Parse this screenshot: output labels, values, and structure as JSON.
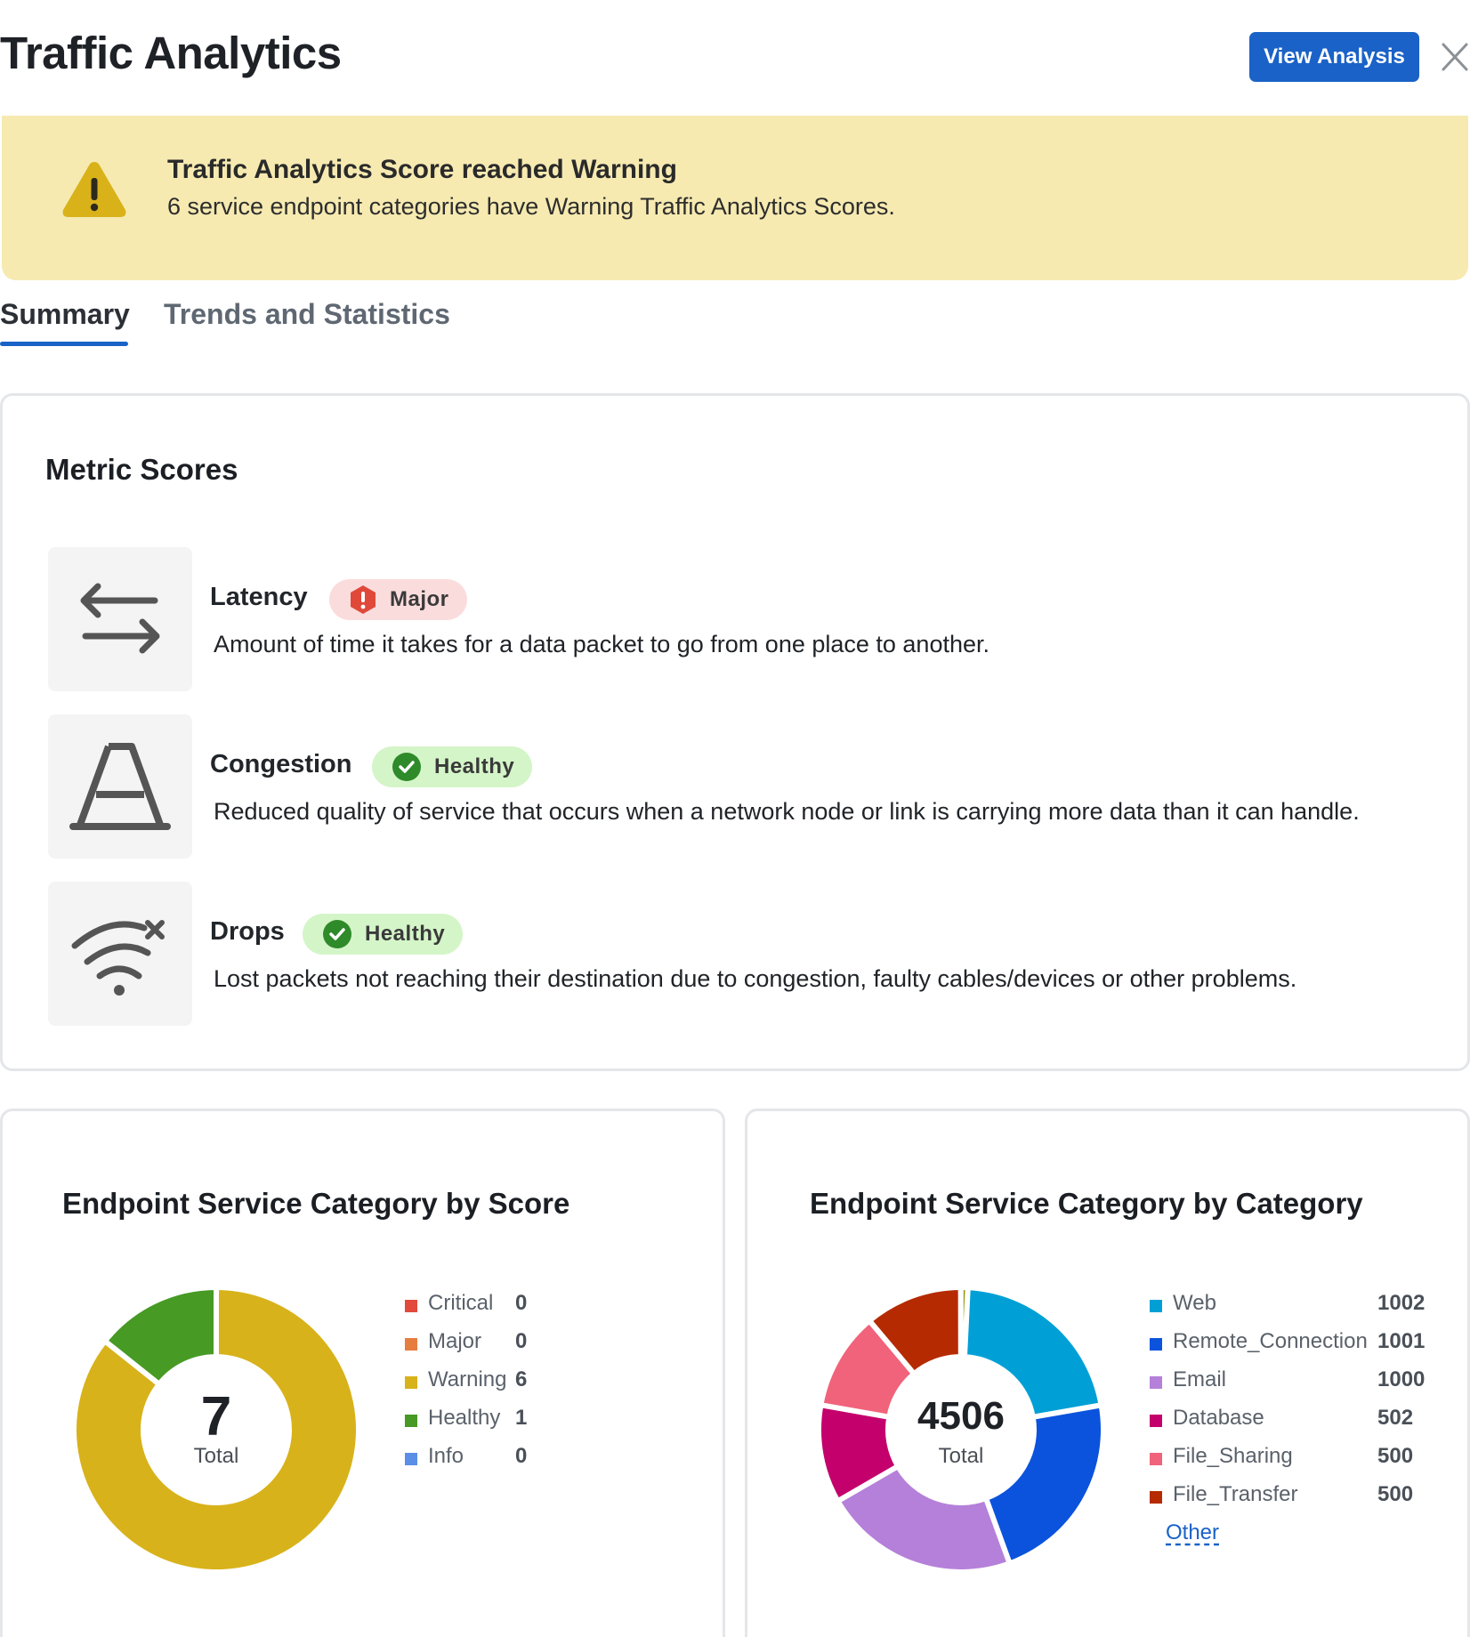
{
  "header": {
    "title": "Traffic Analytics",
    "view_analysis_label": "View Analysis",
    "close_icon": "close-icon"
  },
  "banner": {
    "icon": "warning-triangle-icon",
    "title": "Traffic Analytics Score reached Warning",
    "text": "6 service endpoint categories have Warning Traffic Analytics Scores."
  },
  "tabs": [
    {
      "label": "Summary",
      "active": true
    },
    {
      "label": "Trends and Statistics",
      "active": false
    }
  ],
  "metric_scores": {
    "title": "Metric Scores",
    "items": [
      {
        "name": "Latency",
        "status": "Major",
        "icon": "latency-arrows-icon",
        "description": "Amount of time it takes for a data packet to go from one place to another."
      },
      {
        "name": "Congestion",
        "status": "Healthy",
        "icon": "traffic-cone-icon",
        "description": "Reduced quality of service that occurs when a network node or link is carrying more data than it can handle."
      },
      {
        "name": "Drops",
        "status": "Healthy",
        "icon": "wifi-drop-icon",
        "description": "Lost packets not reaching their destination due to congestion, faulty cables/devices or other problems."
      }
    ]
  },
  "colors": {
    "accent": "#1a62c7",
    "banner_bg": "#f6eab1",
    "major_badge_bg": "#fbdcdc",
    "healthy_badge_bg": "#d4f5c8"
  },
  "chart_data": [
    {
      "type": "pie",
      "title": "Endpoint Service Category by Score",
      "center_value": "7",
      "center_label": "Total",
      "series": [
        {
          "name": "Critical",
          "value": 0,
          "color": "#e24b3b"
        },
        {
          "name": "Major",
          "value": 0,
          "color": "#e67d3f"
        },
        {
          "name": "Warning",
          "value": 6,
          "color": "#d8b21a"
        },
        {
          "name": "Healthy",
          "value": 1,
          "color": "#479a24"
        },
        {
          "name": "Info",
          "value": 0,
          "color": "#5b8ee6"
        }
      ],
      "legend": "right"
    },
    {
      "type": "pie",
      "title": "Endpoint Service Category by Category",
      "center_value": "4506",
      "center_label": "Total",
      "series": [
        {
          "name": "Web",
          "value": 1002,
          "color": "#00a0d6"
        },
        {
          "name": "Remote_Connection",
          "value": 1001,
          "color": "#0b53dc"
        },
        {
          "name": "Email",
          "value": 1000,
          "color": "#b580d9"
        },
        {
          "name": "Database",
          "value": 502,
          "color": "#c4006c"
        },
        {
          "name": "File_Sharing",
          "value": 500,
          "color": "#f0637a"
        },
        {
          "name": "File_Transfer",
          "value": 500,
          "color": "#b52a00"
        },
        {
          "name": "Other",
          "value": 1,
          "color": "#9a9a1a"
        }
      ],
      "legend": "right",
      "legend_link": "Other"
    }
  ]
}
